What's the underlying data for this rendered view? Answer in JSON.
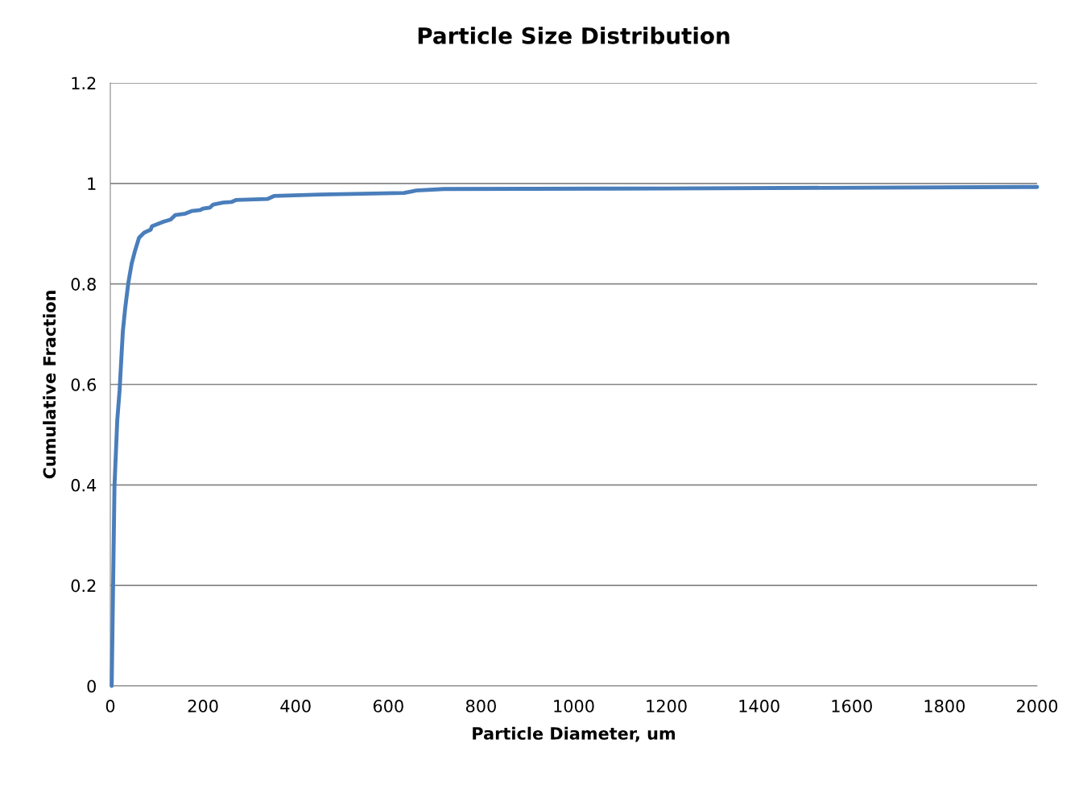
{
  "chart_data": {
    "type": "line",
    "title": "Particle Size Distribution",
    "xlabel": "Particle Diameter, um",
    "ylabel": "Cumulative Fraction",
    "series": [
      {
        "color": "#4a7ebb",
        "x": [
          3,
          9,
          15,
          20,
          27,
          32,
          39,
          46,
          53,
          62,
          73,
          87,
          90,
          112,
          130,
          140,
          162,
          175,
          194,
          200,
          215,
          222,
          243,
          261,
          271,
          339,
          353,
          453,
          634,
          660,
          720,
          1200,
          2000
        ],
        "values": [
          0,
          0.398,
          0.529,
          0.588,
          0.705,
          0.751,
          0.803,
          0.84,
          0.865,
          0.892,
          0.902,
          0.908,
          0.915,
          0.923,
          0.928,
          0.937,
          0.94,
          0.945,
          0.947,
          0.95,
          0.952,
          0.958,
          0.962,
          0.963,
          0.967,
          0.969,
          0.975,
          0.978,
          0.981,
          0.986,
          0.989,
          0.99,
          0.993
        ]
      }
    ],
    "xlim": [
      0,
      2000
    ],
    "xticks": [
      0,
      200,
      400,
      600,
      800,
      1000,
      1200,
      1400,
      1600,
      1800,
      2000
    ],
    "ylim": [
      0,
      1.2
    ],
    "yticks": [
      0,
      0.2,
      0.4,
      0.6,
      0.8,
      1,
      1.2
    ],
    "grid": "y",
    "marker": "none",
    "line_style": "solid",
    "legend": false
  }
}
